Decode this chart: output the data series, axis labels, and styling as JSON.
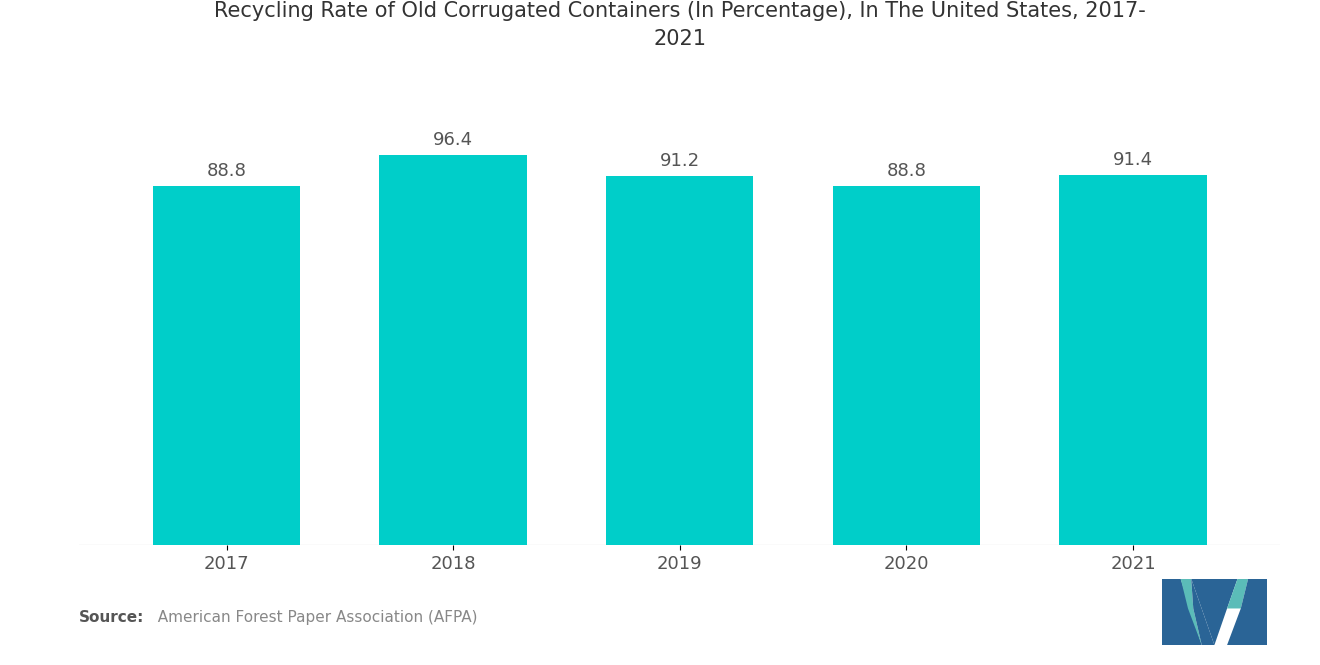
{
  "title": "Recycling Rate of Old Corrugated Containers (In Percentage), In The United States, 2017-\n2021",
  "categories": [
    "2017",
    "2018",
    "2019",
    "2020",
    "2021"
  ],
  "values": [
    88.8,
    96.4,
    91.2,
    88.8,
    91.4
  ],
  "bar_color": "#00CEC9",
  "background_color": "#FFFFFF",
  "title_fontsize": 15,
  "label_fontsize": 13,
  "tick_fontsize": 13,
  "source_bold": "Source:",
  "source_rest": "  American Forest Paper Association (AFPA)",
  "ylim": [
    0,
    115
  ],
  "bar_width": 0.65
}
